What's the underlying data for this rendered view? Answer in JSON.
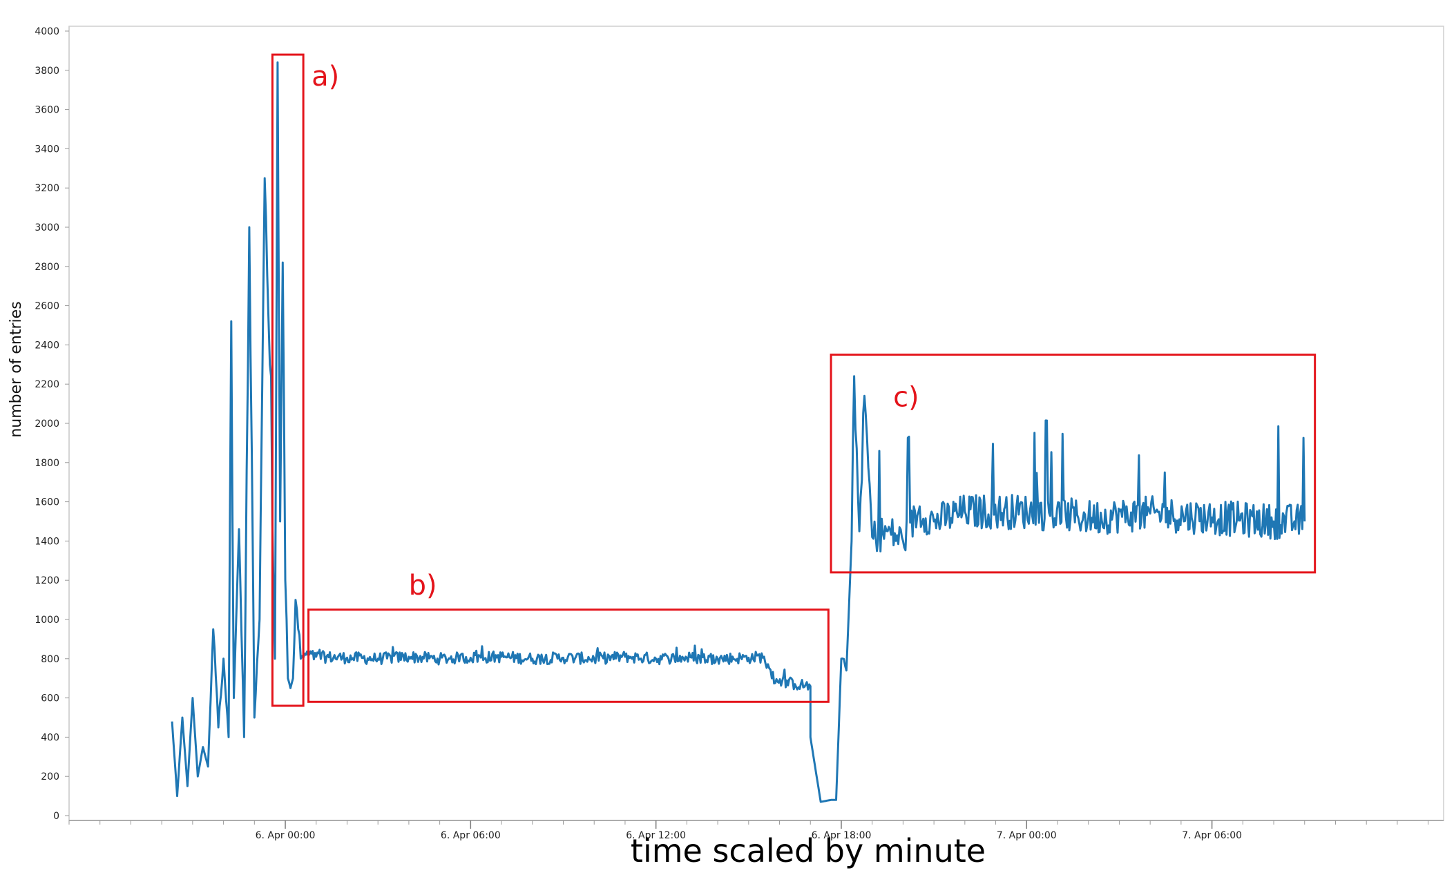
{
  "chart_data": {
    "type": "line",
    "title": "",
    "xlabel": "time scaled by minute",
    "ylabel": "number of entries",
    "ylim": [
      0,
      4000
    ],
    "yticks": [
      0,
      200,
      400,
      600,
      800,
      1000,
      1200,
      1400,
      1600,
      1800,
      2000,
      2200,
      2400,
      2600,
      2800,
      3000,
      3200,
      3400,
      3600,
      3800,
      4000
    ],
    "xlim": [
      "2015-04-05T17:00",
      "2015-04-07T13:30"
    ],
    "xticks": [
      {
        "label": "6. Apr 00:00",
        "time": "2015-04-06T00:00"
      },
      {
        "label": "6. Apr 06:00",
        "time": "2015-04-06T06:00"
      },
      {
        "label": "6. Apr 12:00",
        "time": "2015-04-06T12:00"
      },
      {
        "label": "6. Apr 18:00",
        "time": "2015-04-06T18:00"
      },
      {
        "label": "7. Apr 00:00",
        "time": "2015-04-07T00:00"
      },
      {
        "label": "7. Apr 06:00",
        "time": "2015-04-07T06:00"
      }
    ],
    "grid": false,
    "legend": "none",
    "series_color": "#1f77b4",
    "annotation_color": "#e4141b",
    "series": [
      {
        "time": [
          "2015-04-05T20:20",
          "2015-04-05T20:30",
          "2015-04-05T20:40",
          "2015-04-05T20:50",
          "2015-04-05T21:00",
          "2015-04-05T21:10",
          "2015-04-05T21:20",
          "2015-04-05T21:30",
          "2015-04-05T21:40",
          "2015-04-05T21:50",
          "2015-04-05T22:00",
          "2015-04-05T22:10",
          "2015-04-05T22:15",
          "2015-04-05T22:20",
          "2015-04-05T22:30",
          "2015-04-05T22:40",
          "2015-04-05T22:50",
          "2015-04-05T23:00",
          "2015-04-05T23:10",
          "2015-04-05T23:20",
          "2015-04-05T23:30",
          "2015-04-05T23:40",
          "2015-04-05T23:45",
          "2015-04-05T23:50",
          "2015-04-05T23:55",
          "2015-04-06T00:00",
          "2015-04-06T00:05",
          "2015-04-06T00:10",
          "2015-04-06T00:15",
          "2015-04-06T00:20",
          "2015-04-06T00:30",
          "2015-04-06T00:40",
          "2015-04-06T01:00",
          "2015-04-06T02:00",
          "2015-04-06T03:00",
          "2015-04-06T04:00",
          "2015-04-06T05:00",
          "2015-04-06T06:00",
          "2015-04-06T07:00",
          "2015-04-06T08:00",
          "2015-04-06T09:00",
          "2015-04-06T10:00",
          "2015-04-06T11:00",
          "2015-04-06T12:00",
          "2015-04-06T13:00",
          "2015-04-06T14:00",
          "2015-04-06T15:00",
          "2015-04-06T15:30",
          "2015-04-06T15:45",
          "2015-04-06T16:30",
          "2015-04-06T17:00",
          "2015-04-06T17:00",
          "2015-04-06T17:20",
          "2015-04-06T17:40",
          "2015-04-06T17:50",
          "2015-04-06T18:00",
          "2015-04-06T18:10",
          "2015-04-06T18:20",
          "2015-04-06T18:25",
          "2015-04-06T18:35",
          "2015-04-06T18:45",
          "2015-04-06T19:00",
          "2015-04-06T19:30",
          "2015-04-06T20:00",
          "2015-04-06T20:30",
          "2015-04-06T21:00",
          "2015-04-06T22:00",
          "2015-04-07T00:00",
          "2015-04-07T02:00",
          "2015-04-07T04:00",
          "2015-04-07T06:00",
          "2015-04-07T08:00",
          "2015-04-07T09:00"
        ],
        "values": [
          480,
          100,
          500,
          150,
          600,
          200,
          350,
          250,
          950,
          450,
          800,
          400,
          2520,
          600,
          1460,
          400,
          3000,
          500,
          1000,
          3250,
          2300,
          800,
          3840,
          1500,
          2820,
          1200,
          700,
          650,
          700,
          1100,
          800,
          820,
          810,
          805,
          800,
          810,
          800,
          805,
          810,
          800,
          805,
          800,
          810,
          800,
          805,
          800,
          805,
          810,
          700,
          670,
          660,
          400,
          70,
          80,
          80,
          800,
          740,
          1400,
          2240,
          1450,
          2140,
          1420,
          1450,
          1400,
          1550,
          1500,
          1550,
          1550,
          1520,
          1540,
          1520,
          1500,
          1500
        ]
      }
    ],
    "annotations": [
      {
        "label": "a)",
        "x_range": [
          "2015-04-05T23:35",
          "2015-04-06T00:35"
        ],
        "y_range": [
          560,
          3880
        ]
      },
      {
        "label": "b)",
        "x_range": [
          "2015-04-06T00:45",
          "2015-04-06T17:35"
        ],
        "y_range": [
          580,
          1050
        ]
      },
      {
        "label": "c)",
        "x_range": [
          "2015-04-06T17:40",
          "2015-04-07T09:20"
        ],
        "y_range": [
          1240,
          2350
        ]
      }
    ]
  }
}
